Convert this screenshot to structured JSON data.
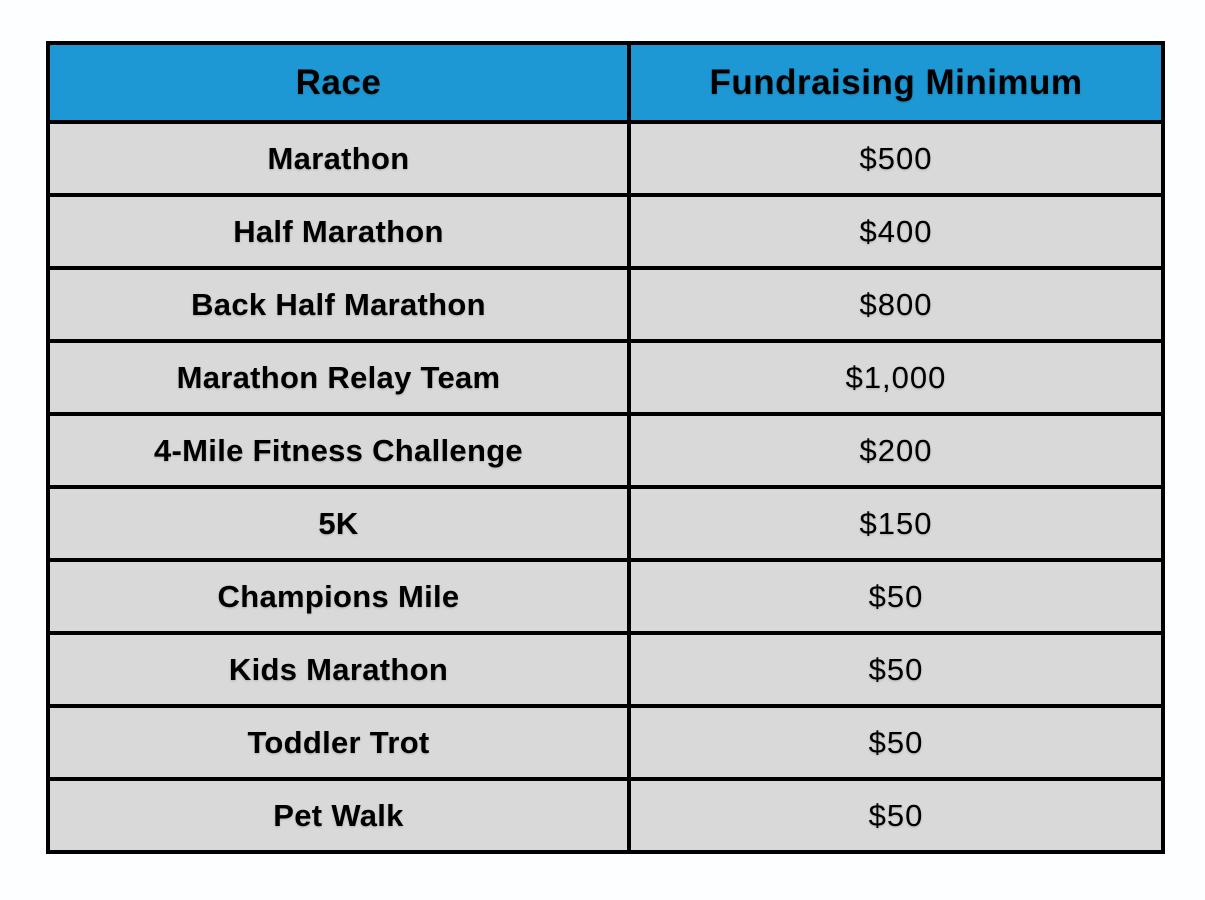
{
  "colors": {
    "header_bg": "#1d98d5",
    "row_bg": "#d9d9d9",
    "border": "#000000",
    "text": "#000000",
    "page_bg": "#fdfeff"
  },
  "table": {
    "columns": [
      {
        "label": "Race"
      },
      {
        "label": "Fundraising Minimum"
      }
    ],
    "rows": [
      {
        "race": "Marathon",
        "minimum": "$500"
      },
      {
        "race": "Half Marathon",
        "minimum": "$400"
      },
      {
        "race": "Back Half Marathon",
        "minimum": "$800"
      },
      {
        "race": "Marathon Relay Team",
        "minimum": "$1,000"
      },
      {
        "race": "4-Mile Fitness Challenge",
        "minimum": "$200"
      },
      {
        "race": "5K",
        "minimum": "$150"
      },
      {
        "race": "Champions Mile",
        "minimum": "$50"
      },
      {
        "race": "Kids Marathon",
        "minimum": "$50"
      },
      {
        "race": "Toddler Trot",
        "minimum": "$50"
      },
      {
        "race": "Pet Walk",
        "minimum": "$50"
      }
    ]
  }
}
